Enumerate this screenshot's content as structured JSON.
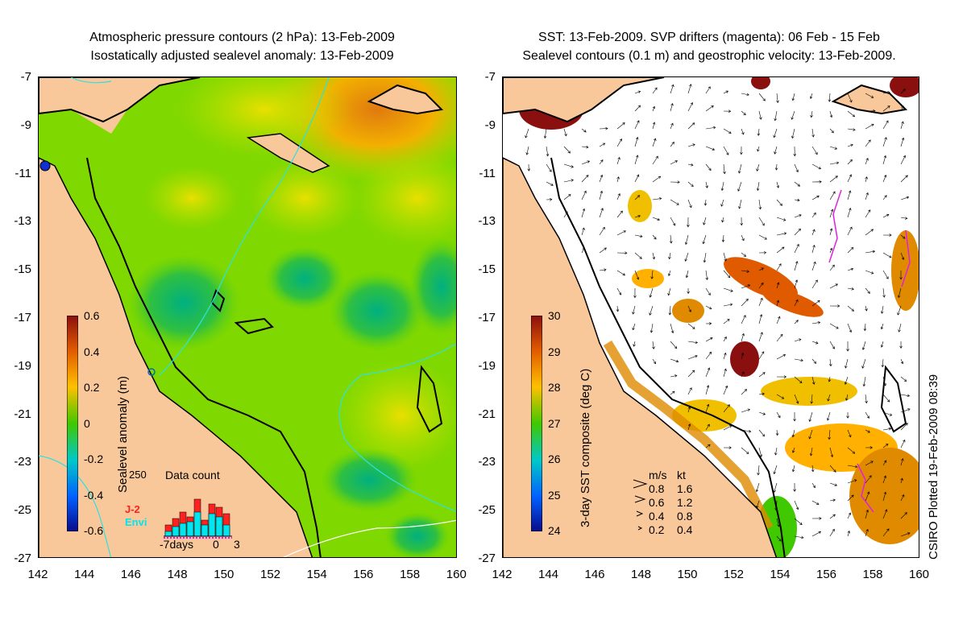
{
  "left_panel": {
    "title_line1": "Atmospheric pressure contours (2 hPa): 13-Feb-2009",
    "title_line2": "Isostatically adjusted sealevel anomaly: 13-Feb-2009",
    "colorbar_label": "Sealevel anomaly (m)",
    "colorbar_ticks": [
      "0.6",
      "0.4",
      "0.2",
      "0",
      "-0.2",
      "-0.4",
      "-0.6"
    ],
    "inset": {
      "title": "Data count",
      "ymax_label": "250",
      "series": [
        {
          "name": "J-2",
          "color": "#ff2020"
        },
        {
          "name": "Envi",
          "color": "#00e5ee"
        }
      ],
      "xlabel_start": "-7days",
      "xlabel_mid": "0",
      "xlabel_end": "3"
    }
  },
  "right_panel": {
    "title_line1": "SST: 13-Feb-2009. SVP drifters (magenta): 06 Feb - 15 Feb",
    "title_line2": "Sealevel contours (0.1 m) and geostrophic velocity: 13-Feb-2009.",
    "colorbar_label": "3-day SST composite (deg C)",
    "colorbar_ticks": [
      "30",
      "29",
      "28",
      "27",
      "26",
      "25",
      "24"
    ],
    "velocity_legend": {
      "header_ms": "m/s",
      "header_kt": "kt",
      "rows": [
        {
          "ms": "0.8",
          "kt": "1.6"
        },
        {
          "ms": "0.6",
          "kt": "1.2"
        },
        {
          "ms": "0.4",
          "kt": "0.8"
        },
        {
          "ms": "0.2",
          "kt": "0.4"
        }
      ]
    },
    "credit": "CSIRO Plotted 19-Feb-2009 08:39"
  },
  "axes": {
    "y_ticks": [
      "-7",
      "-9",
      "-11",
      "-13",
      "-15",
      "-17",
      "-19",
      "-21",
      "-23",
      "-25",
      "-27"
    ],
    "x_ticks": [
      "142",
      "144",
      "146",
      "148",
      "150",
      "152",
      "154",
      "156",
      "158",
      "160"
    ]
  },
  "colors": {
    "land": "#f9c89a",
    "ocean_anomaly": "#7fd800",
    "sst_colormap": [
      "#0a0a8c",
      "#0060ff",
      "#00c8c8",
      "#40c800",
      "#d8e000",
      "#ffb000",
      "#e05a00",
      "#8a1010"
    ]
  }
}
